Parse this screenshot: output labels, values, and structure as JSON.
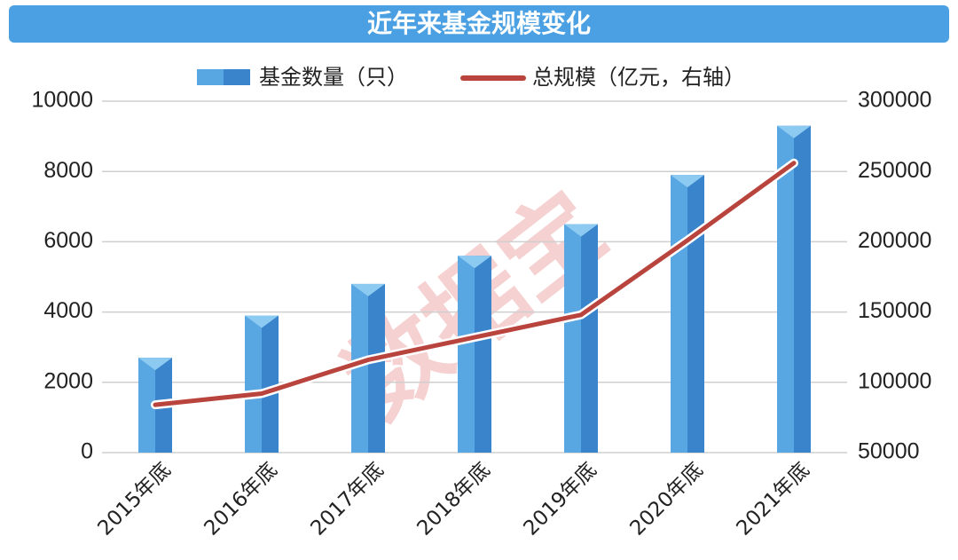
{
  "chart_data": {
    "type": "bar-line",
    "title": "近年来基金规模变化",
    "watermark": "数据宝",
    "categories": [
      "2015年底",
      "2016年底",
      "2017年底",
      "2018年底",
      "2019年底",
      "2020年底",
      "2021年底"
    ],
    "series": [
      {
        "name": "基金数量（只）",
        "type": "bar",
        "color": "#3f8fd6",
        "values": [
          2700,
          3900,
          4800,
          5600,
          6500,
          7900,
          9300
        ]
      },
      {
        "name": "总规模（亿元，右轴）",
        "type": "line",
        "axis": "y2",
        "color": "#b9443d",
        "values": [
          84000,
          92000,
          116000,
          132000,
          148000,
          201000,
          256000
        ]
      }
    ],
    "ylim": [
      0,
      10000
    ],
    "yticks": [
      0,
      2000,
      4000,
      6000,
      8000,
      10000
    ],
    "y2lim": [
      50000,
      300000
    ],
    "y2ticks": [
      50000,
      100000,
      150000,
      200000,
      250000,
      300000
    ],
    "grid": true
  }
}
